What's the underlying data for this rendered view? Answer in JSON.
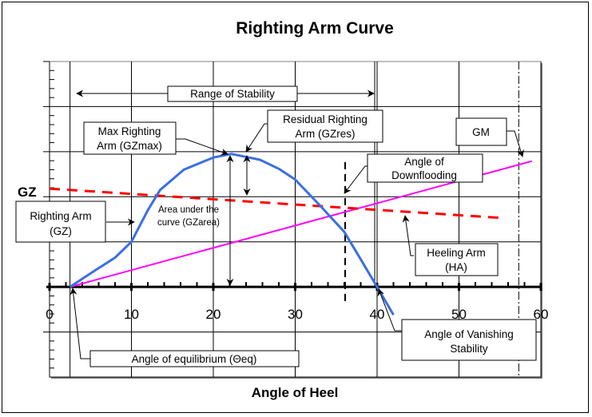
{
  "chart_data": {
    "type": "line",
    "title": "Righting Arm Curve",
    "xlabel": "Angle of Heel",
    "ylabel": "GZ",
    "xlim": [
      0,
      60
    ],
    "ylim": [
      -2,
      5
    ],
    "x_ticks": [
      0,
      10,
      20,
      30,
      40,
      50,
      60
    ],
    "x_tick_labels": [
      "0",
      "10",
      "20",
      "30",
      "40",
      "50",
      "60"
    ],
    "x_minor_step": 2,
    "y_major_step": 1,
    "y_minor_divisions": 5,
    "grid": true,
    "series": [
      {
        "name": "Righting Arm (GZ)",
        "color": "#3b6fe0",
        "style": "solid",
        "points": [
          [
            2.5,
            0
          ],
          [
            5.6,
            0.37
          ],
          [
            8,
            0.65
          ],
          [
            10,
            1.0
          ],
          [
            12,
            1.7
          ],
          [
            13.5,
            2.15
          ],
          [
            16.4,
            2.6
          ],
          [
            20,
            2.87
          ],
          [
            22.2,
            2.95
          ],
          [
            25.7,
            2.82
          ],
          [
            28,
            2.62
          ],
          [
            30,
            2.38
          ],
          [
            33,
            1.81
          ],
          [
            36,
            1.22
          ],
          [
            38.3,
            0.52
          ],
          [
            40,
            0
          ],
          [
            42,
            -0.62
          ]
        ]
      },
      {
        "name": "Heeling Arm (HA)",
        "color": "#ff0000",
        "style": "dashed",
        "points": [
          [
            0,
            2.18
          ],
          [
            55.2,
            1.53
          ]
        ]
      },
      {
        "name": "GM",
        "color": "#ff00ff",
        "style": "solid",
        "points": [
          [
            2.5,
            0
          ],
          [
            58.9,
            2.79
          ]
        ]
      }
    ],
    "reference_lines": [
      {
        "name": "equilibrium-line",
        "x": 2.5,
        "style": "solid"
      },
      {
        "name": "downflooding-line",
        "x": 36.1,
        "style": "dashed",
        "y_from": -0.4,
        "y_to": 2.77
      },
      {
        "name": "gm-radian-line",
        "x": 57.3,
        "style": "dash-dot"
      }
    ],
    "annotations": {
      "range_of_stability": "Range of Stability",
      "max_righting_arm": [
        "Max Righting",
        "Arm (GZmax)"
      ],
      "residual_righting_arm": [
        "Residual Righting",
        "Arm (GZres)"
      ],
      "gm": "GM",
      "angle_of_downflooding": [
        "Angle of",
        "Downflooding"
      ],
      "righting_arm": [
        "Righting Arm",
        "(GZ)"
      ],
      "area_under_curve": [
        "Area under the",
        "curve (GZarea)"
      ],
      "heeling_arm": [
        "Heeling Arm",
        "(HA)"
      ],
      "angle_of_vanishing_stability": [
        "Angle of Vanishing",
        "Stability"
      ],
      "angle_of_equilibrium": "Angle of equilibrium (Θeq)"
    }
  }
}
